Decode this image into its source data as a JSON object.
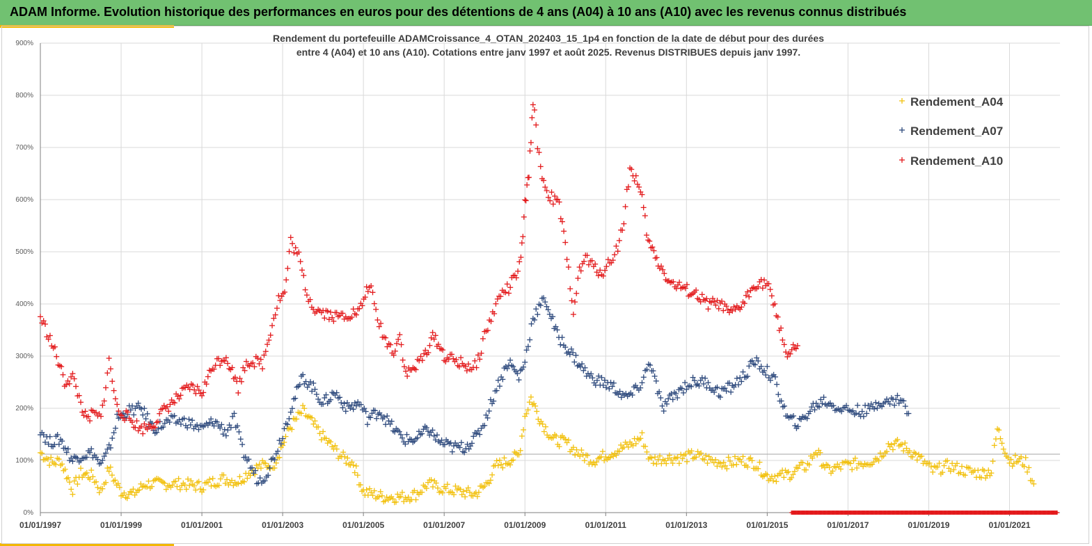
{
  "header": {
    "title": "ADAM Informe. Evolution historique des performances en euros pour des détentions de 4 ans (A04) à 10 ans (A10) avec les revenus connus distribués"
  },
  "colors": {
    "header_bg": "#71c171",
    "accent": "#f2b705",
    "A04": "#f2c10f",
    "A07": "#2e4a7d",
    "A10": "#e31a1c",
    "grid": "#d9d9d9"
  },
  "chart_data": {
    "type": "scatter",
    "title_lines": [
      "Rendement du portefeuille ADAMCroissance_4_OTAN_202403_15_1p4  en fonction de la date de début pour des durées",
      "entre 4 (A04) et 10 ans (A10). Cotations  entre janv 1997 et août 2025. Revenus DISTRIBUES depuis janv 1997."
    ],
    "marker": "+",
    "grid": true,
    "legend_position": "top-right",
    "ylim": [
      0,
      900
    ],
    "xlim": [
      1997.0,
      2022.25
    ],
    "y_ticks": [
      "0%",
      "100%",
      "200%",
      "300%",
      "400%",
      "500%",
      "600%",
      "700%",
      "800%",
      "900%"
    ],
    "x_ticks": [
      "01/01/1997",
      "01/01/1999",
      "01/01/2001",
      "01/01/2003",
      "01/01/2005",
      "01/01/2007",
      "01/01/2009",
      "01/01/2011",
      "01/01/2013",
      "01/01/2015",
      "01/01/2017",
      "01/01/2019",
      "01/01/2021"
    ],
    "reference_line_y": 112,
    "series": [
      {
        "name": "Rendement_A04",
        "color": "#f2c10f",
        "x": [
          1997.0,
          1997.3,
          1997.5,
          1997.8,
          1998.0,
          1998.3,
          1998.5,
          1998.7,
          1998.85,
          1999.0,
          1999.3,
          1999.6,
          2000.0,
          2000.5,
          2001.0,
          2001.5,
          2001.9,
          2002.2,
          2002.5,
          2002.8,
          2003.0,
          2003.15,
          2003.5,
          2003.8,
          2004.0,
          2004.3,
          2004.5,
          2004.75,
          2005.0,
          2005.5,
          2006.0,
          2006.3,
          2006.6,
          2007.0,
          2007.4,
          2007.75,
          2008.0,
          2008.3,
          2008.6,
          2008.85,
          2009.0,
          2009.15,
          2009.4,
          2009.7,
          2010.0,
          2010.4,
          2010.7,
          2011.0,
          2011.3,
          2011.6,
          2011.9,
          2012.1,
          2012.5,
          2012.9,
          2013.2,
          2013.6,
          2014.0,
          2014.4,
          2014.7,
          2015.0,
          2015.3,
          2015.6,
          2015.8,
          2016.0,
          2016.2,
          2016.5,
          2016.9,
          2017.3,
          2017.6,
          2017.8,
          2018.0,
          2018.3,
          2018.6,
          2018.9,
          2019.1,
          2019.5,
          2019.9,
          2020.3,
          2020.55,
          2020.7,
          2021.0,
          2021.25,
          2021.4,
          2021.6
        ],
        "y": [
          115,
          95,
          100,
          45,
          75,
          70,
          40,
          85,
          60,
          40,
          35,
          55,
          55,
          55,
          50,
          65,
          60,
          80,
          90,
          95,
          130,
          160,
          195,
          165,
          145,
          120,
          105,
          95,
          40,
          30,
          30,
          35,
          55,
          45,
          40,
          35,
          50,
          90,
          100,
          110,
          185,
          220,
          175,
          140,
          135,
          110,
          100,
          110,
          120,
          130,
          145,
          100,
          105,
          105,
          110,
          100,
          95,
          100,
          95,
          70,
          70,
          75,
          85,
          90,
          120,
          80,
          90,
          95,
          100,
          110,
          130,
          130,
          115,
          95,
          80,
          90,
          80,
          75,
          80,
          160,
          100,
          100,
          95,
          55
        ]
      },
      {
        "name": "Rendement_A07",
        "color": "#2e4a7d",
        "x": [
          1997.0,
          1997.2,
          1997.5,
          1997.8,
          1998.0,
          1998.3,
          1998.5,
          1998.7,
          1998.9,
          1999.2,
          1999.5,
          1999.8,
          2000.2,
          2000.6,
          2001.0,
          2001.3,
          2001.6,
          2001.8,
          2002.0,
          2002.2,
          2002.4,
          2002.6,
          2002.8,
          2003.0,
          2003.2,
          2003.5,
          2003.8,
          2004.0,
          2004.3,
          2004.6,
          2004.9,
          2005.1,
          2005.4,
          2005.7,
          2006.0,
          2006.3,
          2006.6,
          2006.9,
          2007.2,
          2007.5,
          2007.8,
          2008.0,
          2008.3,
          2008.6,
          2008.85,
          2009.0,
          2009.2,
          2009.5,
          2009.8,
          2010.0,
          2010.3,
          2010.6,
          2010.9,
          2011.2,
          2011.5,
          2011.7,
          2011.9,
          2012.1,
          2012.4,
          2012.7,
          2013.0,
          2013.2,
          2013.5,
          2013.8,
          2014.1,
          2014.4,
          2014.7,
          2015.0,
          2015.2,
          2015.5,
          2015.8,
          2016.1,
          2016.4,
          2016.8,
          2017.2,
          2017.5,
          2017.8,
          2018.0,
          2018.3,
          2018.5
        ],
        "y": [
          160,
          135,
          140,
          100,
          110,
          115,
          90,
          120,
          180,
          195,
          200,
          160,
          175,
          175,
          160,
          175,
          155,
          180,
          120,
          90,
          60,
          75,
          110,
          150,
          200,
          260,
          235,
          210,
          230,
          200,
          210,
          180,
          195,
          165,
          140,
          140,
          160,
          135,
          125,
          125,
          145,
          175,
          240,
          290,
          260,
          290,
          375,
          410,
          340,
          320,
          290,
          260,
          250,
          240,
          220,
          230,
          250,
          290,
          200,
          225,
          245,
          250,
          250,
          230,
          240,
          260,
          290,
          270,
          250,
          180,
          170,
          200,
          215,
          200,
          195,
          195,
          215,
          210,
          220,
          190
        ]
      },
      {
        "name": "Rendement_A10",
        "color": "#e31a1c",
        "x": [
          1997.0,
          1997.2,
          1997.4,
          1997.6,
          1997.8,
          1998.0,
          1998.15,
          1998.3,
          1998.5,
          1998.7,
          1998.9,
          1999.2,
          1999.5,
          1999.8,
          2000.1,
          2000.4,
          2000.7,
          2001.0,
          2001.3,
          2001.6,
          2001.9,
          2002.1,
          2002.3,
          2002.5,
          2002.7,
          2002.9,
          2003.05,
          2003.2,
          2003.4,
          2003.6,
          2003.8,
          2004.0,
          2004.3,
          2004.6,
          2004.9,
          2005.15,
          2005.35,
          2005.55,
          2005.75,
          2005.9,
          2006.05,
          2006.3,
          2006.5,
          2006.75,
          2007.0,
          2007.3,
          2007.6,
          2007.8,
          2008.0,
          2008.2,
          2008.4,
          2008.6,
          2008.75,
          2008.9,
          2009.0,
          2009.1,
          2009.2,
          2009.35,
          2009.5,
          2009.7,
          2009.85,
          2010.0,
          2010.2,
          2010.35,
          2010.5,
          2010.7,
          2010.9,
          2011.1,
          2011.3,
          2011.45,
          2011.6,
          2011.75,
          2011.9,
          2012.05,
          2012.3,
          2012.6,
          2012.9,
          2013.2,
          2013.5,
          2013.8,
          2014.1,
          2014.4,
          2014.7,
          2015.0,
          2015.15,
          2015.3,
          2015.5,
          2015.75
        ],
        "y": [
          375,
          340,
          300,
          250,
          260,
          210,
          175,
          190,
          180,
          290,
          200,
          180,
          160,
          170,
          200,
          220,
          240,
          230,
          285,
          300,
          240,
          290,
          290,
          285,
          350,
          410,
          420,
          520,
          490,
          420,
          390,
          385,
          375,
          380,
          385,
          440,
          370,
          330,
          310,
          340,
          265,
          280,
          300,
          340,
          300,
          290,
          280,
          280,
          340,
          380,
          420,
          430,
          450,
          480,
          590,
          650,
          790,
          680,
          620,
          600,
          590,
          510,
          390,
          460,
          490,
          470,
          460,
          480,
          510,
          560,
          660,
          640,
          600,
          520,
          480,
          440,
          430,
          420,
          400,
          400,
          380,
          400,
          440,
          440,
          400,
          360,
          300,
          320
        ]
      },
      {
        "name": "",
        "color": "#e31a1c",
        "x": [
          2015.6,
          2015.75,
          2015.9,
          2016.05,
          2016.2,
          2016.35,
          2016.5,
          2016.65,
          2016.8,
          2016.95,
          2017.1,
          2017.25,
          2017.4,
          2017.55,
          2017.7,
          2017.85,
          2018.0,
          2018.15,
          2018.3,
          2018.45,
          2018.6,
          2018.75,
          2018.9,
          2019.05,
          2019.2,
          2019.35,
          2019.5,
          2019.65,
          2019.8,
          2019.95,
          2020.1,
          2020.25,
          2020.4,
          2020.55,
          2020.7,
          2020.85,
          2021.0,
          2021.15,
          2021.3,
          2021.45,
          2021.6,
          2021.75,
          2021.9,
          2022.05,
          2022.2
        ],
        "y": [
          0,
          0,
          0,
          0,
          0,
          0,
          0,
          0,
          0,
          0,
          0,
          0,
          0,
          0,
          0,
          0,
          0,
          0,
          0,
          0,
          0,
          0,
          0,
          0,
          0,
          0,
          0,
          0,
          0,
          0,
          0,
          0,
          0,
          0,
          0,
          0,
          0,
          0,
          0,
          0,
          0,
          0,
          0,
          0,
          0
        ]
      }
    ],
    "legend": [
      "Rendement_A04",
      "Rendement_A07",
      "Rendement_A10"
    ]
  }
}
